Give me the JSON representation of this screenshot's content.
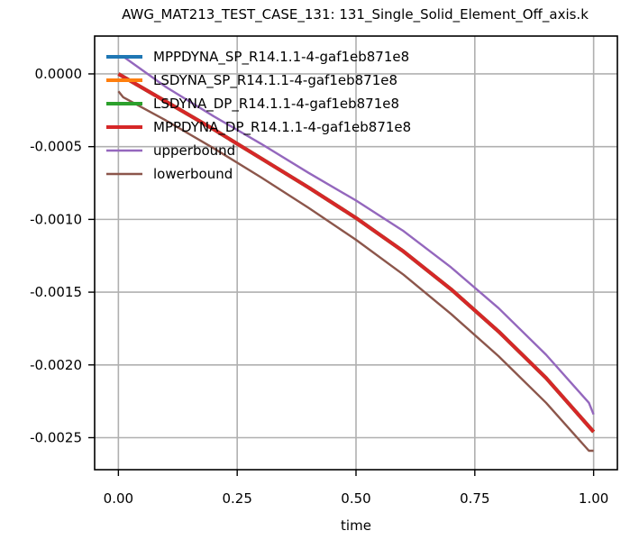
{
  "chart_data": {
    "type": "line",
    "title": "AWG_MAT213_TEST_CASE_131: 131_Single_Solid_Element_Off_axis.k",
    "xlabel": "time",
    "ylabel": "",
    "xlim": [
      -0.05,
      1.05
    ],
    "ylim": [
      -0.00272,
      0.00026
    ],
    "grid": true,
    "legend_position": "upper-left",
    "xticks": [
      0.0,
      0.25,
      0.5,
      0.75,
      1.0
    ],
    "xtick_labels": [
      "0.00",
      "0.25",
      "0.50",
      "0.75",
      "1.00"
    ],
    "yticks": [
      0.0,
      -0.0005,
      -0.001,
      -0.0015,
      -0.002,
      -0.0025
    ],
    "ytick_labels": [
      "0.0000",
      "-0.0005",
      "-0.0010",
      "-0.0015",
      "-0.0020",
      "-0.0025"
    ],
    "series": [
      {
        "name": "MPPDYNA_SP_R14.1.1-4-gaf1eb871e8",
        "color": "#1f77b4",
        "x": [
          0.0,
          0.1,
          0.2,
          0.3,
          0.4,
          0.5,
          0.6,
          0.7,
          0.8,
          0.9,
          1.0
        ],
        "y": [
          0.0,
          -0.00019,
          -0.00038,
          -0.00058,
          -0.00078,
          -0.00099,
          -0.00122,
          -0.00148,
          -0.00177,
          -0.00209,
          -0.00246
        ]
      },
      {
        "name": "LSDYNA_SP_R14.1.1-4-gaf1eb871e8",
        "color": "#ff7f0e",
        "x": [
          0.0,
          0.1,
          0.2,
          0.3,
          0.4,
          0.5,
          0.6,
          0.7,
          0.8,
          0.9,
          1.0
        ],
        "y": [
          0.0,
          -0.00019,
          -0.00038,
          -0.00058,
          -0.00078,
          -0.00099,
          -0.00122,
          -0.00148,
          -0.00177,
          -0.00209,
          -0.00246
        ]
      },
      {
        "name": "LSDYNA_DP_R14.1.1-4-gaf1eb871e8",
        "color": "#2ca02c",
        "x": [
          0.0,
          0.1,
          0.2,
          0.3,
          0.4,
          0.5,
          0.6,
          0.7,
          0.8,
          0.9,
          1.0
        ],
        "y": [
          0.0,
          -0.00019,
          -0.00038,
          -0.00058,
          -0.00078,
          -0.00099,
          -0.00122,
          -0.00148,
          -0.00177,
          -0.00209,
          -0.00246
        ]
      },
      {
        "name": "MPPDYNA_DP_R14.1.1-4-gaf1eb871e8",
        "color": "#d62728",
        "x": [
          0.0,
          0.1,
          0.2,
          0.3,
          0.4,
          0.5,
          0.6,
          0.7,
          0.8,
          0.9,
          1.0
        ],
        "y": [
          0.0,
          -0.00019,
          -0.00038,
          -0.00058,
          -0.00078,
          -0.00099,
          -0.00122,
          -0.00148,
          -0.00177,
          -0.00209,
          -0.00246
        ]
      },
      {
        "name": "upperbound",
        "color": "#9467bd",
        "x": [
          0.01,
          0.1,
          0.2,
          0.3,
          0.4,
          0.5,
          0.6,
          0.7,
          0.8,
          0.9,
          0.99,
          1.0
        ],
        "y": [
          0.00012,
          -9e-05,
          -0.00029,
          -0.00048,
          -0.00068,
          -0.00087,
          -0.00108,
          -0.00133,
          -0.00161,
          -0.00193,
          -0.00226,
          -0.00234
        ]
      },
      {
        "name": "lowerbound",
        "color": "#8c564b",
        "x": [
          0.0,
          0.01,
          0.1,
          0.2,
          0.3,
          0.4,
          0.5,
          0.6,
          0.7,
          0.8,
          0.9,
          0.99,
          1.0
        ],
        "y": [
          -0.00012,
          -0.00016,
          -0.00032,
          -0.00051,
          -0.00071,
          -0.00092,
          -0.00114,
          -0.00138,
          -0.00165,
          -0.00194,
          -0.00226,
          -0.00259,
          -0.00259
        ]
      }
    ]
  }
}
